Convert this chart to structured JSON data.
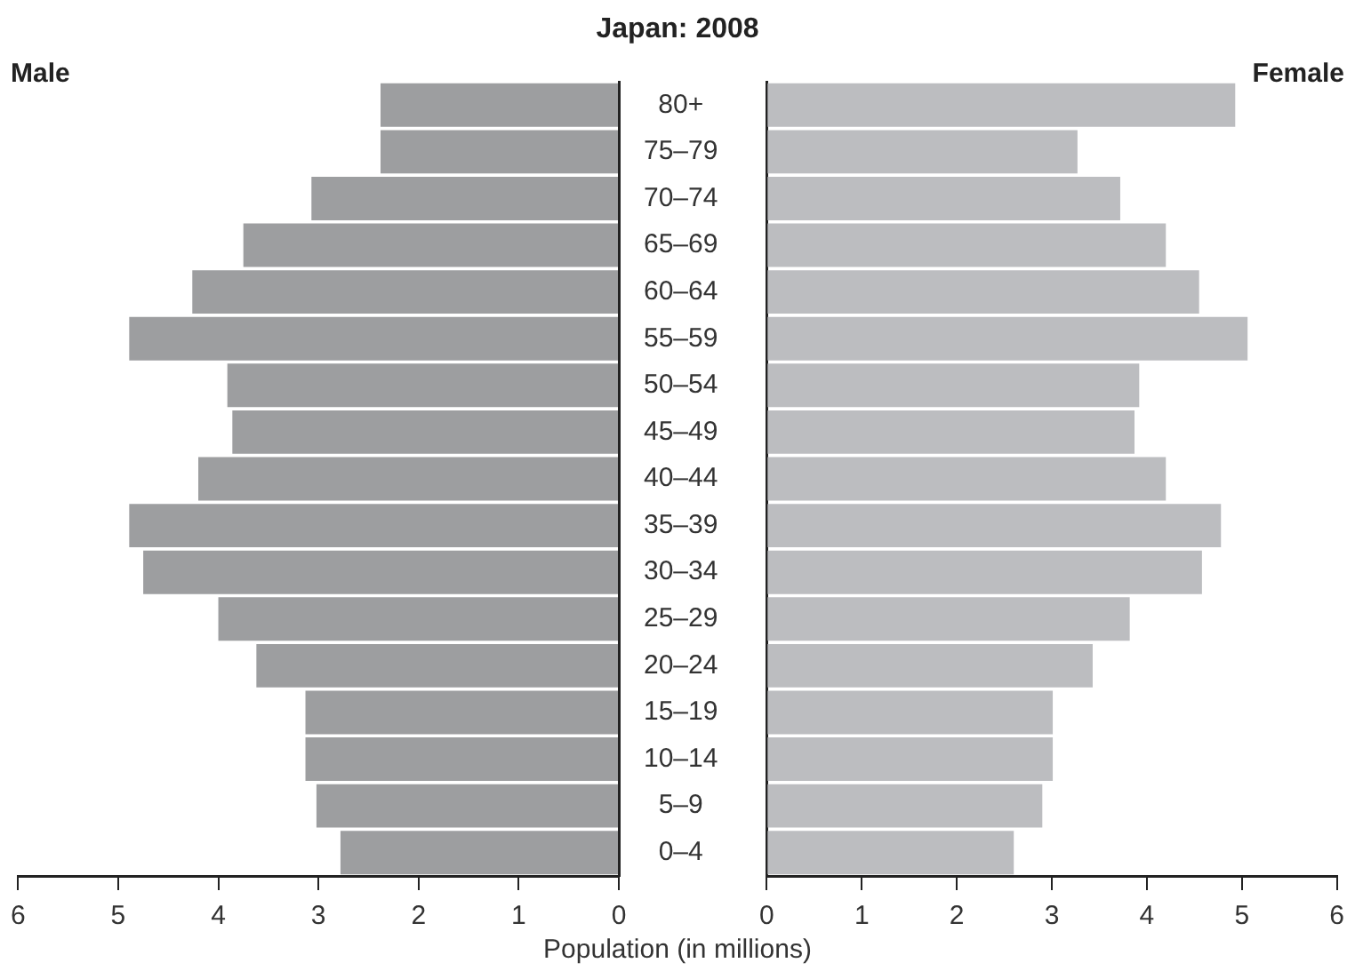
{
  "chart_data": [
    {
      "type": "bar",
      "title": "Japan: 2008",
      "orientation": "horizontal",
      "categories": [
        "80+",
        "75–79",
        "70–74",
        "65–69",
        "60–64",
        "55–59",
        "50–54",
        "45–49",
        "40–44",
        "35–39",
        "30–34",
        "25–29",
        "20–24",
        "15–19",
        "10–14",
        "5–9",
        "0–4"
      ],
      "series": [
        {
          "name": "Male",
          "color": "#9d9ea0",
          "values": [
            2.38,
            2.38,
            3.07,
            3.75,
            4.26,
            4.89,
            3.91,
            3.86,
            4.2,
            4.89,
            4.75,
            4.0,
            3.62,
            3.13,
            3.13,
            3.02,
            2.78
          ]
        }
      ],
      "xlim": [
        6,
        0
      ],
      "xticks": [
        6,
        5,
        4,
        3,
        2,
        1,
        0
      ],
      "grid": false
    },
    {
      "type": "bar",
      "xlabel": "Population (in millions)",
      "orientation": "horizontal",
      "categories": [
        null,
        null,
        null,
        null,
        null,
        null,
        null,
        null,
        null,
        null,
        null,
        null,
        null,
        null,
        null,
        null,
        null
      ],
      "series": [
        {
          "name": "Female",
          "color": "#bcbdc0",
          "values": [
            4.93,
            3.27,
            3.72,
            4.2,
            4.55,
            5.06,
            3.92,
            3.87,
            4.2,
            4.78,
            4.58,
            3.82,
            3.43,
            3.01,
            3.01,
            2.9,
            2.6
          ]
        }
      ],
      "xlim": [
        0,
        6
      ],
      "xticks": [
        0,
        1,
        2,
        3,
        4,
        5,
        6
      ],
      "tick_labels": "x",
      "grid": false
    }
  ]
}
